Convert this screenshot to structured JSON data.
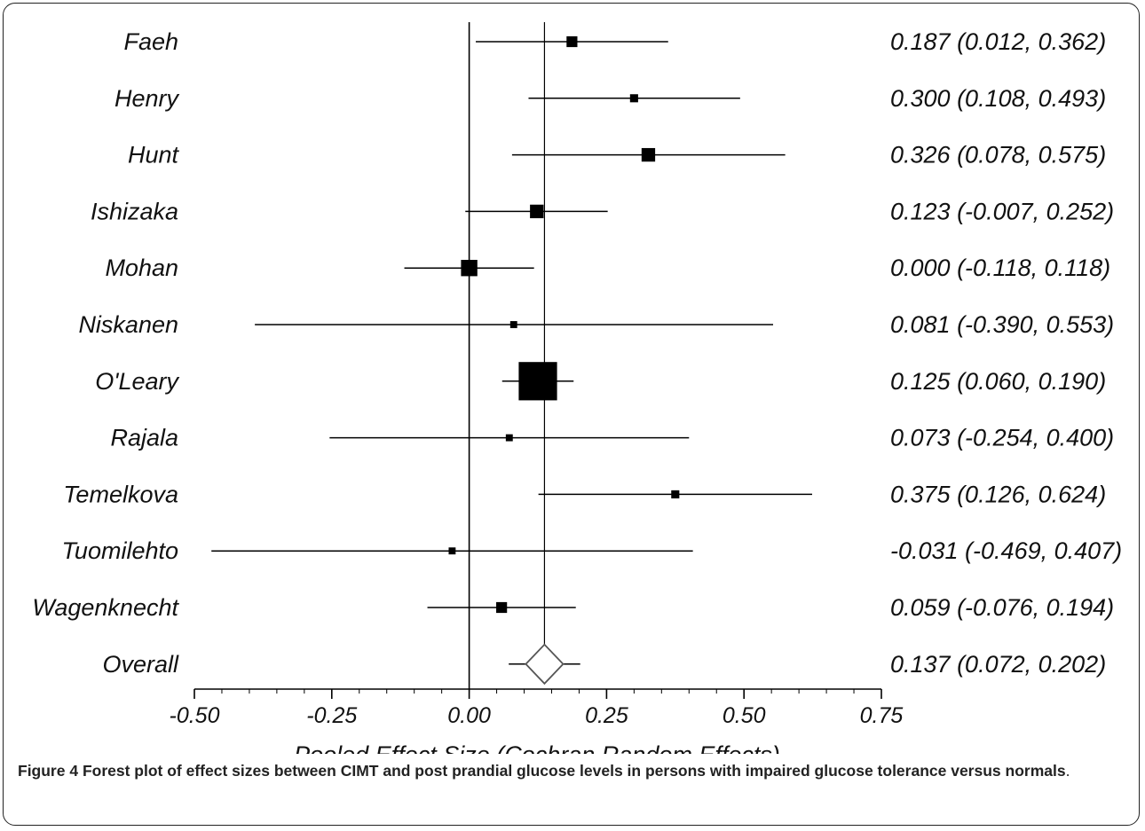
{
  "chart_data": {
    "type": "forest",
    "xlabel": "Pooled Effect Size (Cochran Random Effects)",
    "xlim": [
      -0.5,
      0.75
    ],
    "x_ticks": [
      "-0.50",
      "-0.25",
      "0.00",
      "0.25",
      "0.50",
      "0.75"
    ],
    "tick_values": [
      -0.5,
      -0.25,
      0,
      0.25,
      0.5,
      0.75
    ],
    "null_line": 0,
    "studies": [
      {
        "name": "Faeh",
        "estimate": 0.187,
        "lower": 0.012,
        "upper": 0.362,
        "label": "0.187 (0.012, 0.362)",
        "weight": 2
      },
      {
        "name": "Henry",
        "estimate": 0.3,
        "lower": 0.108,
        "upper": 0.493,
        "label": "0.300 (0.108, 0.493)",
        "weight": 1
      },
      {
        "name": "Hunt",
        "estimate": 0.326,
        "lower": 0.078,
        "upper": 0.575,
        "label": "0.326 (0.078, 0.575)",
        "weight": 3
      },
      {
        "name": "Ishizaka",
        "estimate": 0.123,
        "lower": -0.007,
        "upper": 0.252,
        "label": "0.123 (-0.007, 0.252)",
        "weight": 3
      },
      {
        "name": "Mohan",
        "estimate": 0.0,
        "lower": -0.118,
        "upper": 0.118,
        "label": "0.000 (-0.118, 0.118)",
        "weight": 4
      },
      {
        "name": "Niskanen",
        "estimate": 0.081,
        "lower": -0.39,
        "upper": 0.553,
        "label": "0.081 (-0.390, 0.553)",
        "weight": 0.6
      },
      {
        "name": "O'Leary",
        "estimate": 0.125,
        "lower": 0.06,
        "upper": 0.19,
        "label": "0.125 (0.060, 0.190)",
        "weight": 12
      },
      {
        "name": "Rajala",
        "estimate": 0.073,
        "lower": -0.254,
        "upper": 0.4,
        "label": "0.073 (-0.254, 0.400)",
        "weight": 0.6
      },
      {
        "name": "Temelkova",
        "estimate": 0.375,
        "lower": 0.126,
        "upper": 0.624,
        "label": "0.375 (0.126, 0.624)",
        "weight": 1
      },
      {
        "name": "Tuomilehto",
        "estimate": -0.031,
        "lower": -0.469,
        "upper": 0.407,
        "label": "-0.031 (-0.469, 0.407)",
        "weight": 0.6
      },
      {
        "name": "Wagenknecht",
        "estimate": 0.059,
        "lower": -0.076,
        "upper": 0.194,
        "label": "0.059 (-0.076, 0.194)",
        "weight": 2
      }
    ],
    "overall": {
      "name": "Overall",
      "estimate": 0.137,
      "lower": 0.072,
      "upper": 0.202,
      "label": "0.137 (0.072, 0.202)"
    }
  },
  "caption": {
    "figure_label": "Figure 4",
    "text": "Forest plot of effect sizes between CIMT and post prandial glucose levels in persons with impaired glucose tolerance versus normals",
    "period": "."
  }
}
